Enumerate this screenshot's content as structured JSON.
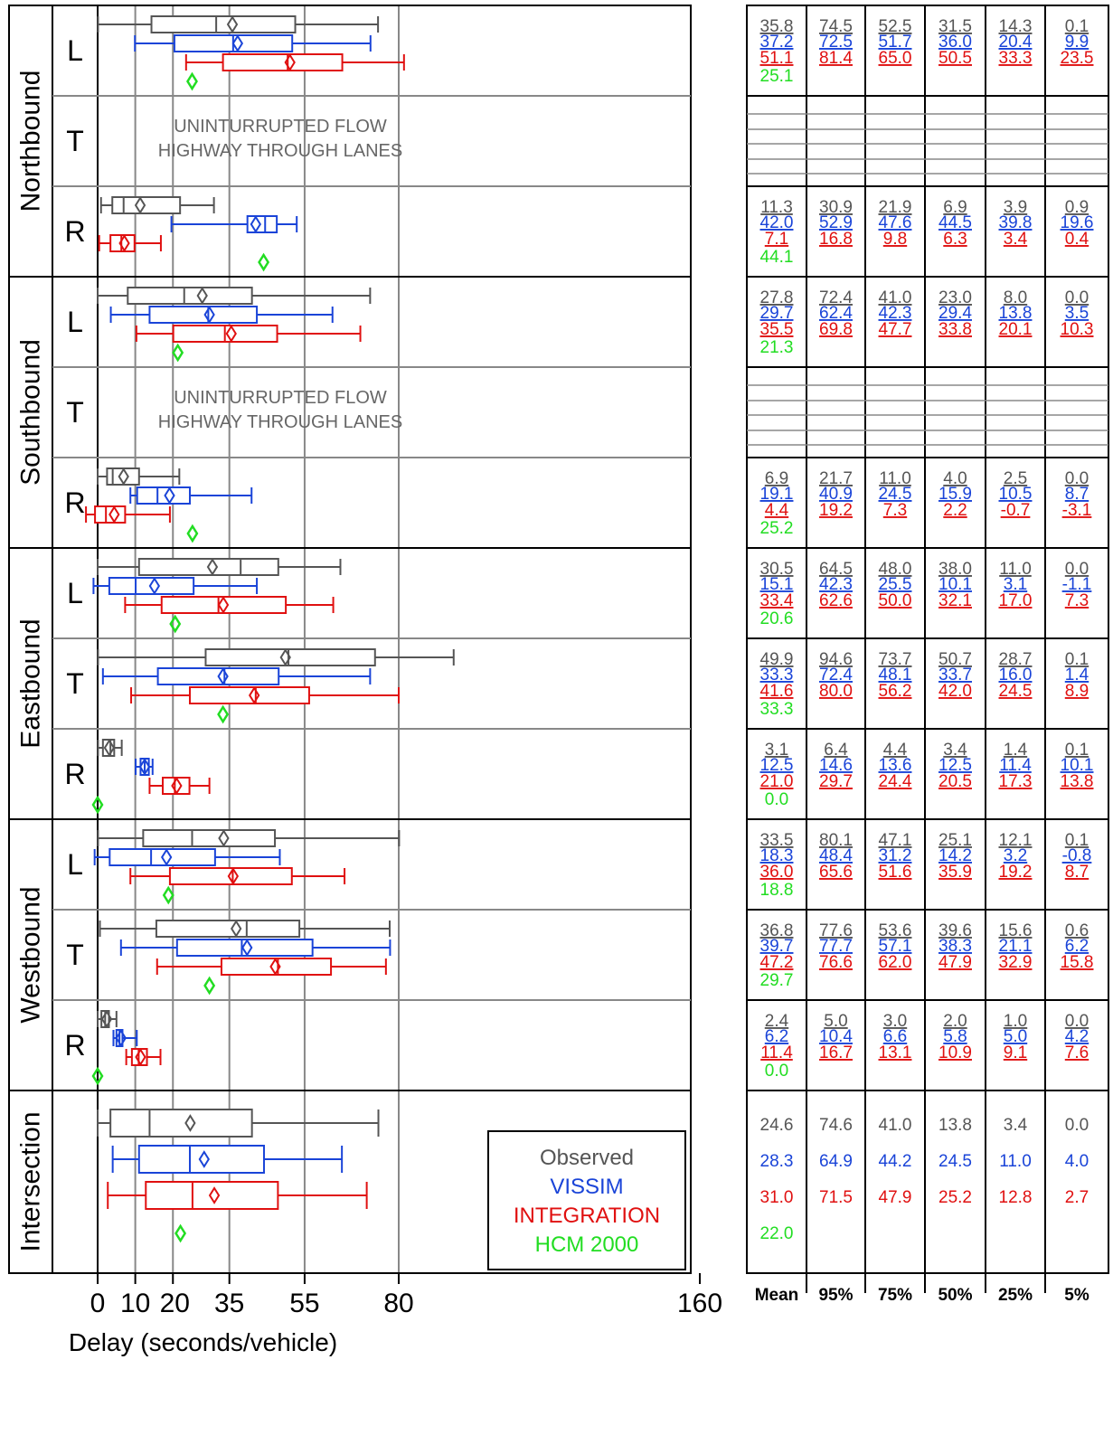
{
  "chart_data": {
    "type": "box",
    "xlabel": "Delay (seconds/vehicle)",
    "xlim": [
      0,
      160
    ],
    "x_ticks": [
      "0",
      "10",
      "20",
      "35",
      "55",
      "80",
      "160"
    ],
    "series_colors": {
      "Observed": "#555555",
      "VISSIM": "#1a44d8",
      "INTEGRATION": "#e01010",
      "HCM 2000": "#22dd22"
    },
    "legend": {
      "placement": "lower-right of plot",
      "entries": [
        "Observed",
        "VISSIM",
        "INTEGRATION",
        "HCM 2000"
      ]
    },
    "table_headers": [
      "Mean",
      "95%",
      "75%",
      "50%",
      "25%",
      "5%"
    ],
    "uninterrupted_text": [
      "UNINTURRUPTED FLOW",
      "HIGHWAY THROUGH LANES"
    ],
    "groups": [
      {
        "name": "Northbound",
        "movements": [
          {
            "label": "L",
            "stats": {
              "Observed": [
                35.8,
                74.5,
                52.5,
                31.5,
                14.3,
                0.1
              ],
              "VISSIM": [
                37.2,
                72.5,
                51.7,
                36.0,
                20.4,
                9.9
              ],
              "INTEGRATION": [
                51.1,
                81.4,
                65.0,
                50.5,
                33.3,
                23.5
              ]
            },
            "hcm": 25.1
          },
          {
            "label": "T",
            "uninterrupted": true
          },
          {
            "label": "R",
            "stats": {
              "Observed": [
                11.3,
                30.9,
                21.9,
                6.9,
                3.9,
                0.9
              ],
              "VISSIM": [
                42.0,
                52.9,
                47.6,
                44.5,
                39.8,
                19.6
              ],
              "INTEGRATION": [
                7.1,
                16.8,
                9.8,
                6.3,
                3.4,
                0.4
              ]
            },
            "hcm": 44.1
          }
        ]
      },
      {
        "name": "Southbound",
        "movements": [
          {
            "label": "L",
            "stats": {
              "Observed": [
                27.8,
                72.4,
                41.0,
                23.0,
                8.0,
                0.0
              ],
              "VISSIM": [
                29.7,
                62.4,
                42.3,
                29.4,
                13.8,
                3.5
              ],
              "INTEGRATION": [
                35.5,
                69.8,
                47.7,
                33.8,
                20.1,
                10.3
              ]
            },
            "hcm": 21.3
          },
          {
            "label": "T",
            "uninterrupted": true
          },
          {
            "label": "R",
            "stats": {
              "Observed": [
                6.9,
                21.7,
                11.0,
                4.0,
                2.5,
                0.0
              ],
              "VISSIM": [
                19.1,
                40.9,
                24.5,
                15.9,
                10.5,
                8.7
              ],
              "INTEGRATION": [
                4.4,
                19.2,
                7.3,
                2.2,
                -0.7,
                -3.1
              ]
            },
            "hcm": 25.2
          }
        ]
      },
      {
        "name": "Eastbound",
        "movements": [
          {
            "label": "L",
            "stats": {
              "Observed": [
                30.5,
                64.5,
                48.0,
                38.0,
                11.0,
                0.0
              ],
              "VISSIM": [
                15.1,
                42.3,
                25.5,
                10.1,
                3.1,
                -1.1
              ],
              "INTEGRATION": [
                33.4,
                62.6,
                50.0,
                32.1,
                17.0,
                7.3
              ]
            },
            "hcm": 20.6
          },
          {
            "label": "T",
            "stats": {
              "Observed": [
                49.9,
                94.6,
                73.7,
                50.7,
                28.7,
                0.1
              ],
              "VISSIM": [
                33.3,
                72.4,
                48.1,
                33.7,
                16.0,
                1.4
              ],
              "INTEGRATION": [
                41.6,
                80.0,
                56.2,
                42.0,
                24.5,
                8.9
              ]
            },
            "hcm": 33.3
          },
          {
            "label": "R",
            "stats": {
              "Observed": [
                3.1,
                6.4,
                4.4,
                3.4,
                1.4,
                0.1
              ],
              "VISSIM": [
                12.5,
                14.6,
                13.6,
                12.5,
                11.4,
                10.1
              ],
              "INTEGRATION": [
                21.0,
                29.7,
                24.4,
                20.5,
                17.3,
                13.8
              ]
            },
            "hcm": 0.0
          }
        ]
      },
      {
        "name": "Westbound",
        "movements": [
          {
            "label": "L",
            "stats": {
              "Observed": [
                33.5,
                80.1,
                47.1,
                25.1,
                12.1,
                0.1
              ],
              "VISSIM": [
                18.3,
                48.4,
                31.2,
                14.2,
                3.2,
                -0.8
              ],
              "INTEGRATION": [
                36.0,
                65.6,
                51.6,
                35.9,
                19.2,
                8.7
              ]
            },
            "hcm": 18.8
          },
          {
            "label": "T",
            "stats": {
              "Observed": [
                36.8,
                77.6,
                53.6,
                39.6,
                15.6,
                0.6
              ],
              "VISSIM": [
                39.7,
                77.7,
                57.1,
                38.3,
                21.1,
                6.2
              ],
              "INTEGRATION": [
                47.2,
                76.6,
                62.0,
                47.9,
                32.9,
                15.8
              ]
            },
            "hcm": 29.7
          },
          {
            "label": "R",
            "stats": {
              "Observed": [
                2.4,
                5.0,
                3.0,
                2.0,
                1.0,
                0.0
              ],
              "VISSIM": [
                6.2,
                10.4,
                6.6,
                5.8,
                5.0,
                4.2
              ],
              "INTEGRATION": [
                11.4,
                16.7,
                13.1,
                10.9,
                9.1,
                7.6
              ]
            },
            "hcm": 0.0
          }
        ]
      },
      {
        "name": "Intersection",
        "movements": [
          {
            "label": "",
            "stats": {
              "Observed": [
                24.6,
                74.6,
                41.0,
                13.8,
                3.4,
                0.0
              ],
              "VISSIM": [
                28.3,
                64.9,
                44.2,
                24.5,
                11.0,
                4.0
              ],
              "INTEGRATION": [
                31.0,
                71.5,
                47.9,
                25.2,
                12.8,
                2.7
              ]
            },
            "hcm": 22.0
          }
        ]
      }
    ]
  }
}
